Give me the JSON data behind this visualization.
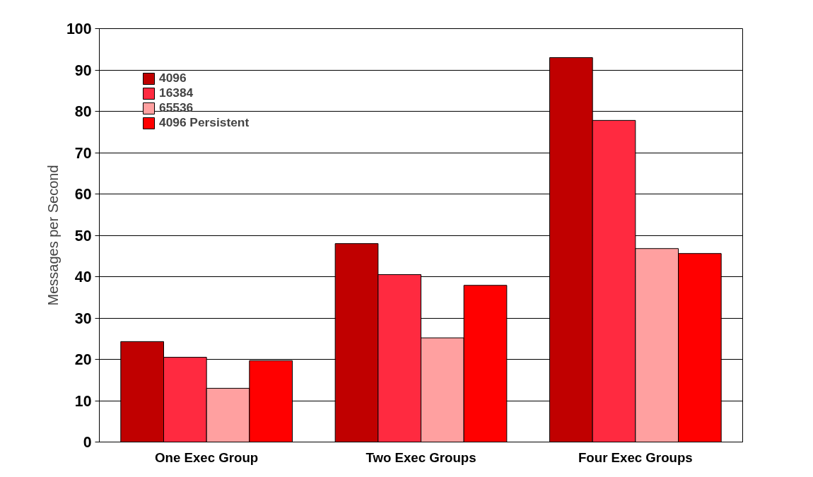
{
  "chart_data": {
    "type": "bar",
    "ylabel": "Messages per Second",
    "categories": [
      "One Exec Group",
      "Two Exec Groups",
      "Four Exec Groups"
    ],
    "series": [
      {
        "name": "4096",
        "color": "#c00000",
        "values": [
          24.3,
          48,
          93
        ]
      },
      {
        "name": "16384",
        "color": "#ff2a40",
        "values": [
          20.5,
          40.5,
          77.8
        ]
      },
      {
        "name": "65536",
        "color": "#ffa0a0",
        "values": [
          13,
          25.2,
          46.8
        ]
      },
      {
        "name": "4096 Persistent",
        "color": "#ff0000",
        "values": [
          19.7,
          37.9,
          45.6
        ]
      }
    ],
    "ylim": [
      0,
      100
    ],
    "yticks": [
      0,
      10,
      20,
      30,
      40,
      50,
      60,
      70,
      80,
      90,
      100
    ],
    "grid": "y",
    "legend": "top left"
  }
}
